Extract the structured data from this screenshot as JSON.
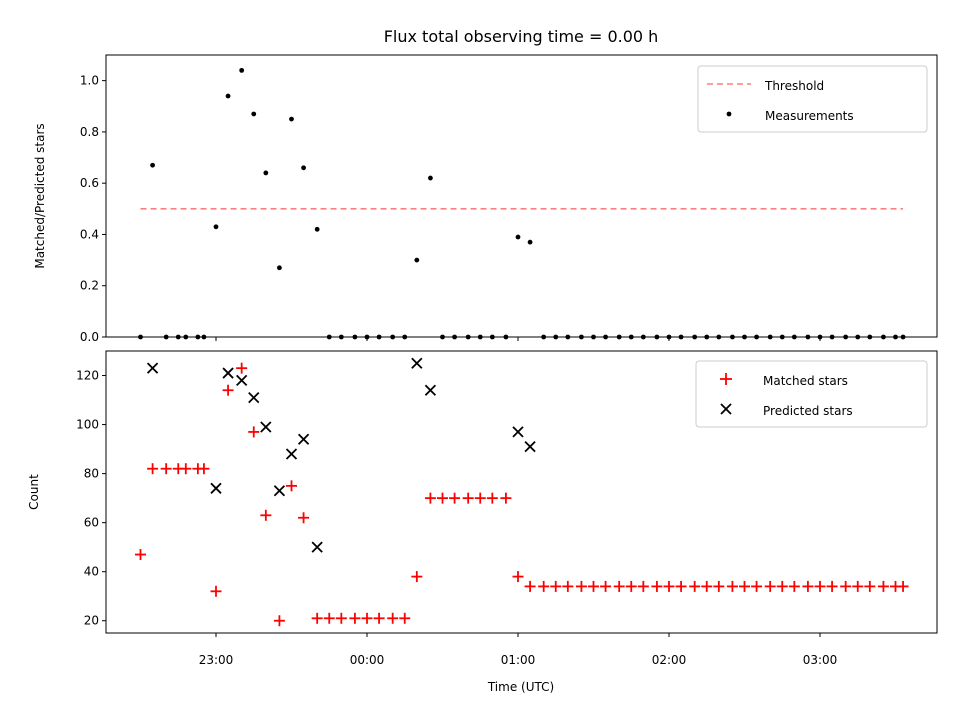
{
  "chart_data": [
    {
      "type": "scatter",
      "title": "Flux total observing time = 0.00 h",
      "xlabel": "",
      "ylabel": "Matched/Predicted stars",
      "ylim": [
        0,
        1.1
      ],
      "yticks": [
        "0.0",
        "0.2",
        "0.4",
        "0.6",
        "0.8",
        "1.0"
      ],
      "xticks": [
        "23:00",
        "00:00",
        "01:00",
        "02:00",
        "03:00"
      ],
      "grid": false,
      "legend": {
        "placement": "top-right",
        "entries": [
          "Threshold",
          "Measurements"
        ]
      },
      "threshold": {
        "name": "Threshold",
        "value": 0.5,
        "x_start": -0.5,
        "x_end": 4.55,
        "color": "#ff7f7f",
        "style": "dashed"
      },
      "series": [
        {
          "name": "Measurements",
          "marker": "dot",
          "color": "#000000",
          "x": [
            -0.5,
            -0.42,
            -0.33,
            -0.25,
            -0.2,
            -0.12,
            -0.08,
            0.0,
            0.08,
            0.17,
            0.25,
            0.33,
            0.42,
            0.5,
            0.58,
            0.67,
            0.75,
            0.83,
            0.92,
            1.0,
            1.08,
            1.17,
            1.25,
            1.33,
            1.42,
            1.5,
            1.58,
            1.67,
            1.75,
            1.83,
            1.92,
            2.0,
            2.08,
            2.17,
            2.25,
            2.33,
            2.42,
            2.5,
            2.58,
            2.67,
            2.75,
            2.83,
            2.92,
            3.0,
            3.08,
            3.17,
            3.25,
            3.33,
            3.42,
            3.5,
            3.58,
            3.67,
            3.75,
            3.83,
            3.92,
            4.0,
            4.08,
            4.17,
            4.25,
            4.33,
            4.42,
            4.5,
            4.55
          ],
          "y": [
            0.0,
            0.67,
            0.0,
            0.0,
            0.0,
            0.0,
            0.0,
            0.43,
            0.94,
            1.04,
            0.87,
            0.64,
            0.27,
            0.85,
            0.66,
            0.42,
            0.0,
            0.0,
            0.0,
            0.0,
            0.0,
            0.0,
            0.0,
            0.3,
            0.62,
            0.0,
            0.0,
            0.0,
            0.0,
            0.0,
            0.0,
            0.39,
            0.37,
            0.0,
            0.0,
            0.0,
            0.0,
            0.0,
            0.0,
            0.0,
            0.0,
            0.0,
            0.0,
            0.0,
            0.0,
            0.0,
            0.0,
            0.0,
            0.0,
            0.0,
            0.0,
            0.0,
            0.0,
            0.0,
            0.0,
            0.0,
            0.0,
            0.0,
            0.0,
            0.0,
            0.0,
            0.0,
            0.0
          ]
        }
      ]
    },
    {
      "type": "scatter",
      "title": "",
      "xlabel": "Time (UTC)",
      "ylabel": "Count",
      "ylim": [
        15,
        130
      ],
      "yticks": [
        "20",
        "40",
        "60",
        "80",
        "100",
        "120"
      ],
      "xticks": [
        "23:00",
        "00:00",
        "01:00",
        "02:00",
        "03:00"
      ],
      "grid": false,
      "legend": {
        "placement": "top-right",
        "entries": [
          "Matched stars",
          "Predicted stars"
        ]
      },
      "series": [
        {
          "name": "Matched stars",
          "marker": "plus",
          "color": "#ff0000",
          "x": [
            -0.5,
            -0.42,
            -0.33,
            -0.25,
            -0.2,
            -0.12,
            -0.08,
            0.0,
            0.08,
            0.17,
            0.25,
            0.33,
            0.42,
            0.5,
            0.58,
            0.67,
            0.75,
            0.83,
            0.92,
            1.0,
            1.08,
            1.17,
            1.25,
            1.33,
            1.42,
            1.5,
            1.58,
            1.67,
            1.75,
            1.83,
            1.92,
            2.0,
            2.08,
            2.17,
            2.25,
            2.33,
            2.42,
            2.5,
            2.58,
            2.67,
            2.75,
            2.83,
            2.92,
            3.0,
            3.08,
            3.17,
            3.25,
            3.33,
            3.42,
            3.5,
            3.58,
            3.67,
            3.75,
            3.83,
            3.92,
            4.0,
            4.08,
            4.17,
            4.25,
            4.33,
            4.42,
            4.5,
            4.55
          ],
          "y": [
            47,
            82,
            82,
            82,
            82,
            82,
            82,
            32,
            114,
            123,
            97,
            63,
            20,
            75,
            62,
            21,
            21,
            21,
            21,
            21,
            21,
            21,
            21,
            38,
            70,
            70,
            70,
            70,
            70,
            70,
            70,
            38,
            34,
            34,
            34,
            34,
            34,
            34,
            34,
            34,
            34,
            34,
            34,
            34,
            34,
            34,
            34,
            34,
            34,
            34,
            34,
            34,
            34,
            34,
            34,
            34,
            34,
            34,
            34,
            34,
            34,
            34,
            34
          ]
        },
        {
          "name": "Predicted stars",
          "marker": "x",
          "color": "#000000",
          "x": [
            -0.42,
            0.0,
            0.08,
            0.17,
            0.25,
            0.33,
            0.42,
            0.5,
            0.58,
            0.67,
            1.33,
            1.42,
            2.0,
            2.08
          ],
          "y": [
            123,
            74,
            121,
            118,
            111,
            99,
            73,
            88,
            94,
            50,
            125,
            114,
            97,
            91
          ]
        }
      ]
    }
  ]
}
